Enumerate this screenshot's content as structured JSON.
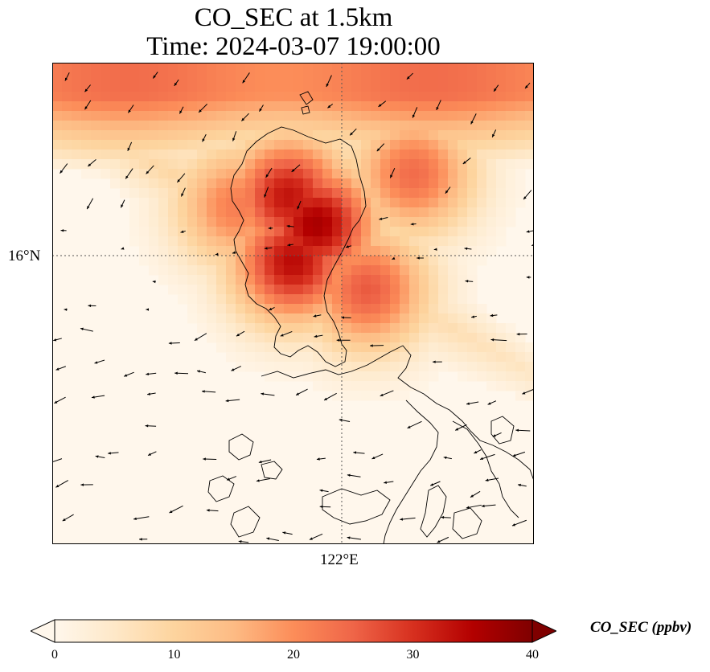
{
  "title_line1": "CO_SEC at 1.5km",
  "title_line2": "Time: 2024-03-07 19:00:00",
  "lat_label": "16°N",
  "lon_label": "122°E",
  "colorbar": {
    "label": "CO_SEC (ppbv)",
    "ticks": [
      "0",
      "10",
      "20",
      "30",
      "40"
    ],
    "min": 0,
    "max": 40,
    "colormap": [
      "#fff7ec",
      "#fee8c8",
      "#fdd49e",
      "#fdbb84",
      "#fc8d59",
      "#ef6548",
      "#d7301f",
      "#b30000",
      "#7f0000"
    ]
  },
  "field": {
    "hotspots": [
      {
        "lon": 121.85,
        "lat": 16.35,
        "value": 36
      },
      {
        "lon": 121.55,
        "lat": 16.65,
        "value": 33
      },
      {
        "lon": 121.6,
        "lat": 15.95,
        "value": 34
      },
      {
        "lon": 122.4,
        "lat": 15.65,
        "value": 26
      },
      {
        "lon": 121.0,
        "lat": 16.55,
        "value": 22
      },
      {
        "lon": 122.9,
        "lat": 16.9,
        "value": 24
      }
    ]
  }
}
